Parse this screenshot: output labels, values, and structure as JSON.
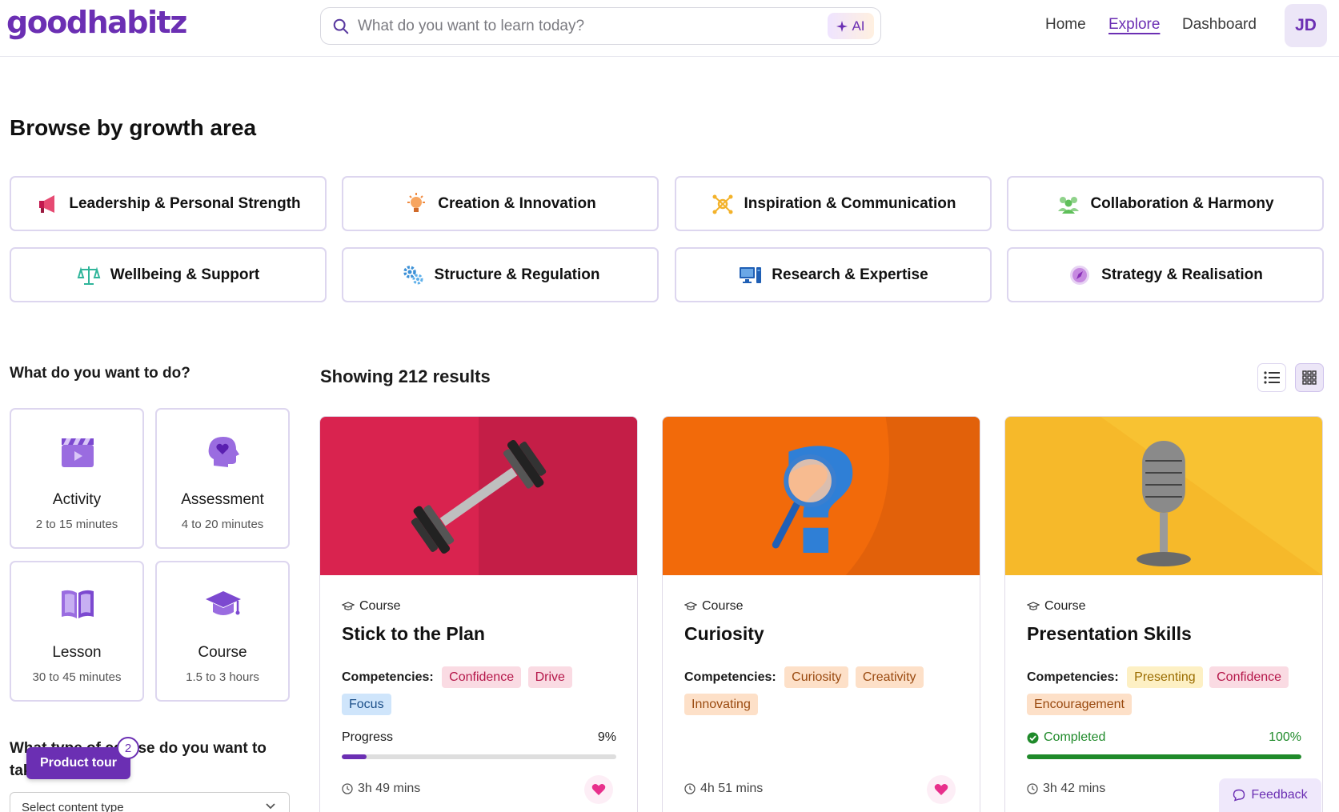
{
  "header": {
    "logo": "goodhabitz",
    "search_placeholder": "What do you want to learn today?",
    "ai_label": "AI",
    "nav": [
      "Home",
      "Explore",
      "Dashboard"
    ],
    "avatar": "JD"
  },
  "browse": {
    "title": "Browse by growth area",
    "areas": [
      {
        "label": "Leadership & Personal Strength",
        "icon": "megaphone-icon"
      },
      {
        "label": "Creation & Innovation",
        "icon": "lightbulb-icon"
      },
      {
        "label": "Inspiration & Communication",
        "icon": "network-icon"
      },
      {
        "label": "Collaboration & Harmony",
        "icon": "people-icon"
      },
      {
        "label": "Wellbeing & Support",
        "icon": "scale-icon"
      },
      {
        "label": "Structure & Regulation",
        "icon": "gears-icon"
      },
      {
        "label": "Research & Expertise",
        "icon": "computer-icon"
      },
      {
        "label": "Strategy & Realisation",
        "icon": "compass-icon"
      }
    ]
  },
  "filters": {
    "title": "What do you want to do?",
    "types": [
      {
        "name": "Activity",
        "duration": "2 to 15 minutes",
        "icon": "clapper-icon"
      },
      {
        "name": "Assessment",
        "duration": "4 to 20 minutes",
        "icon": "head-heart-icon"
      },
      {
        "name": "Lesson",
        "duration": "30 to 45 minutes",
        "icon": "book-icon"
      },
      {
        "name": "Course",
        "duration": "1.5 to 3 hours",
        "icon": "graduation-cap-icon"
      }
    ],
    "course_type_question": "What type of course do you want to take?",
    "select_placeholder": "Select content type"
  },
  "tour": {
    "label": "Product tour",
    "badge": "2"
  },
  "results": {
    "title": "Showing 212 results",
    "cards": [
      {
        "type": "Course",
        "title": "Stick to the Plan",
        "competencies_label": "Competencies:",
        "competencies": [
          {
            "name": "Confidence",
            "color": "pink"
          },
          {
            "name": "Drive",
            "color": "pink"
          },
          {
            "name": "Focus",
            "color": "blue"
          }
        ],
        "progress_label": "Progress",
        "progress_value": "9%",
        "progress": 0.09,
        "duration": "3h 49 mins",
        "image_color": "#d9234f",
        "favorite": true
      },
      {
        "type": "Course",
        "title": "Curiosity",
        "competencies_label": "Competencies:",
        "competencies": [
          {
            "name": "Curiosity",
            "color": "orange"
          },
          {
            "name": "Creativity",
            "color": "orange"
          },
          {
            "name": "Innovating",
            "color": "orange"
          }
        ],
        "duration": "4h 51 mins",
        "image_color": "#f26a0a",
        "favorite": true
      },
      {
        "type": "Course",
        "title": "Presentation Skills",
        "competencies_label": "Competencies:",
        "competencies": [
          {
            "name": "Presenting",
            "color": "yellow"
          },
          {
            "name": "Confidence",
            "color": "pink"
          },
          {
            "name": "Encouragement",
            "color": "orange"
          }
        ],
        "progress_label": "Completed",
        "progress_value": "100%",
        "progress": 1.0,
        "duration": "3h 42 mins",
        "image_color": "#f8c232",
        "favorite": false
      }
    ]
  },
  "feedback_label": "Feedback",
  "colors": {
    "brand": "#6b2fb3",
    "progress": "#6b2fb3",
    "completed": "#1f8a2a",
    "favorite": "#e8308c"
  }
}
